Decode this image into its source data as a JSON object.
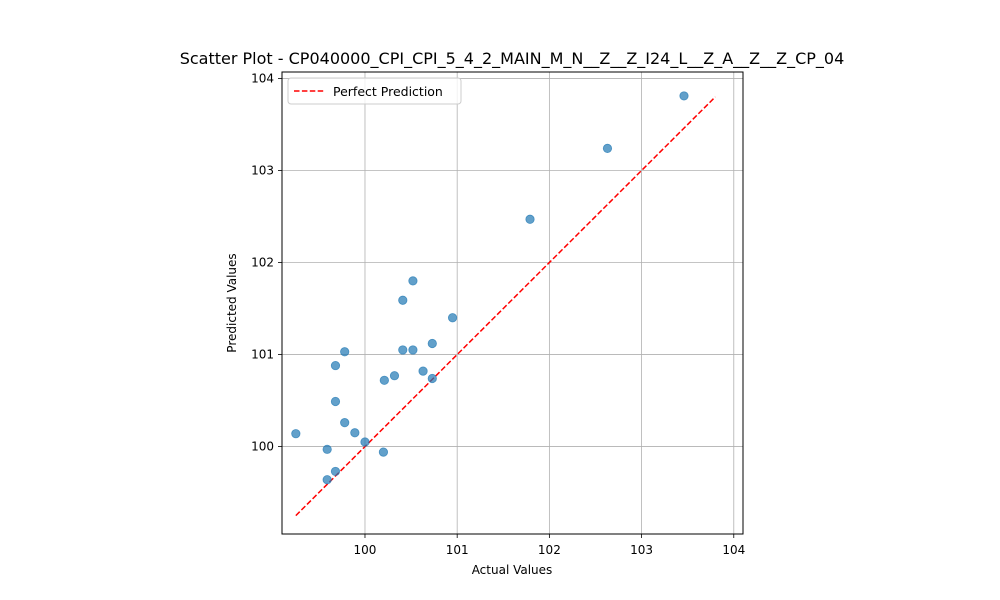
{
  "chart_data": {
    "type": "scatter",
    "title": "Scatter Plot - CP040000_CPI_CPI_5_4_2_MAIN_M_N__Z__Z_I24_L__Z_A__Z__Z_CP_04",
    "xlabel": "Actual Values",
    "ylabel": "Predicted Values",
    "xlim": [
      99.1,
      104.1
    ],
    "ylim": [
      99.05,
      104.07
    ],
    "xticks": [
      100,
      101,
      102,
      103,
      104
    ],
    "yticks": [
      100,
      101,
      102,
      103,
      104
    ],
    "grid": true,
    "legend_position": "upper-left",
    "colors": {
      "points": "#1f77b4",
      "reference_line": "#ff0000",
      "grid": "#b0b0b0"
    },
    "reference_line": {
      "name": "Perfect Prediction",
      "x": [
        99.25,
        103.8
      ],
      "y": [
        99.25,
        103.8
      ]
    },
    "points": [
      {
        "x": 99.25,
        "y": 100.14
      },
      {
        "x": 99.59,
        "y": 99.97
      },
      {
        "x": 99.59,
        "y": 99.64
      },
      {
        "x": 99.68,
        "y": 99.73
      },
      {
        "x": 99.68,
        "y": 100.49
      },
      {
        "x": 99.68,
        "y": 100.88
      },
      {
        "x": 99.78,
        "y": 101.03
      },
      {
        "x": 99.78,
        "y": 100.26
      },
      {
        "x": 99.89,
        "y": 100.15
      },
      {
        "x": 100.0,
        "y": 100.05
      },
      {
        "x": 100.2,
        "y": 99.94
      },
      {
        "x": 100.21,
        "y": 100.72
      },
      {
        "x": 100.32,
        "y": 100.77
      },
      {
        "x": 100.41,
        "y": 101.05
      },
      {
        "x": 100.41,
        "y": 101.59
      },
      {
        "x": 100.52,
        "y": 101.05
      },
      {
        "x": 100.52,
        "y": 101.8
      },
      {
        "x": 100.63,
        "y": 100.82
      },
      {
        "x": 100.73,
        "y": 100.74
      },
      {
        "x": 100.73,
        "y": 101.12
      },
      {
        "x": 100.95,
        "y": 101.4
      },
      {
        "x": 101.79,
        "y": 102.47
      },
      {
        "x": 102.63,
        "y": 103.24
      },
      {
        "x": 103.46,
        "y": 103.81
      }
    ]
  }
}
